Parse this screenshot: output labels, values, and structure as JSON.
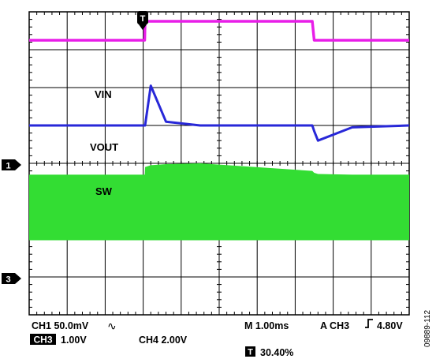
{
  "chart_data": {
    "type": "line",
    "title": "",
    "grid": true,
    "divisions": {
      "x": 10,
      "y": 8
    },
    "time_per_div_ms": 1.0,
    "trigger_position_pct": 30.4,
    "x": [
      0,
      3.04,
      3.05,
      3.2,
      3.6,
      4.5,
      7.45,
      7.5,
      7.6,
      8.5,
      10
    ],
    "series": [
      {
        "name": "VIN",
        "channel_marker": "",
        "color": "#e81ee8",
        "values": [
          7.25,
          7.25,
          7.75,
          7.75,
          7.75,
          7.75,
          7.75,
          7.25,
          7.25,
          7.25,
          7.25
        ]
      },
      {
        "name": "VOUT",
        "channel_marker": "1",
        "color": "#2828d8",
        "values": [
          5.0,
          5.0,
          5.0,
          6.05,
          5.1,
          5.0,
          5.0,
          4.85,
          4.6,
          4.95,
          5.0
        ]
      },
      {
        "name": "SW",
        "channel_marker": "3",
        "color": "#33dd33",
        "values": [
          3.7,
          3.7,
          3.9,
          3.95,
          3.98,
          4.0,
          3.8,
          3.75,
          3.72,
          3.7,
          3.7
        ],
        "baseline": 2.0
      }
    ],
    "readout": {
      "ch1": "CH1  50.0mV",
      "ch1_coupling": "∿",
      "timebase": "M 1.00ms",
      "trigger": "A  CH3",
      "trigger_slope": "_/‾",
      "trigger_level": "4.80V",
      "ch3_tag": "CH3",
      "ch3": "1.00V",
      "ch4": "CH4  2.00V",
      "trig_tag": "T",
      "trig_pos": "30.40%"
    },
    "figure_id": "09889-112",
    "trigger_marker": "T"
  }
}
